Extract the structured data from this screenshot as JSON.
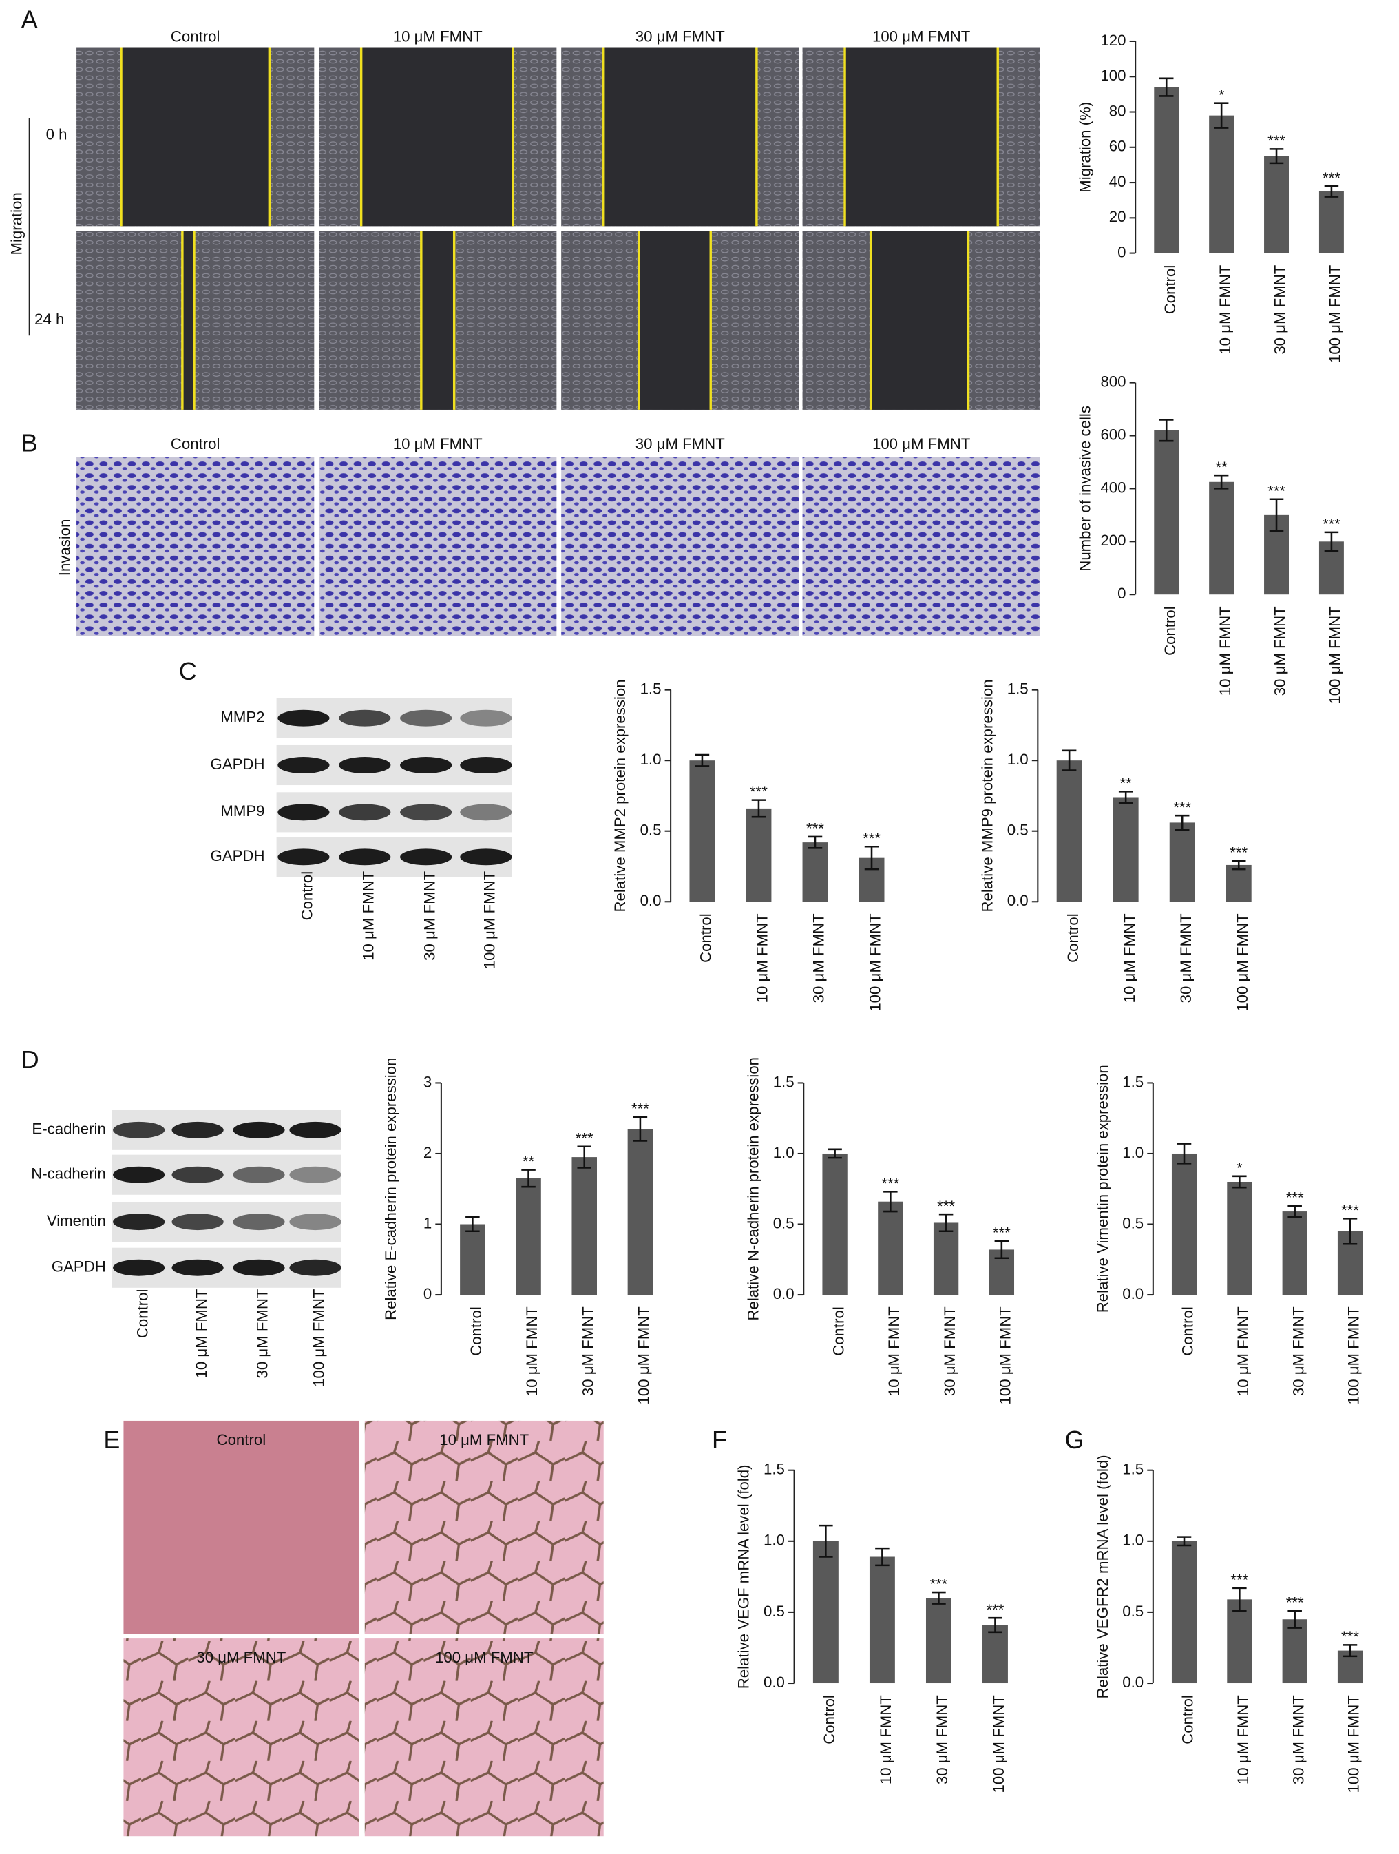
{
  "figure": {
    "panel_letters": [
      "A",
      "B",
      "C",
      "D",
      "E",
      "F",
      "G"
    ],
    "migration": {
      "label": "Migration",
      "rows": [
        "0 h",
        "24 h"
      ],
      "columns": [
        "Control",
        "10 μM FMNT",
        "30 μM FMNT",
        "100 μM FMNT"
      ]
    },
    "invasion": {
      "label": "Invasion",
      "columns": [
        "Control",
        "10 μM FMNT",
        "30 μM FMNT",
        "100 μM FMNT"
      ]
    },
    "blot_c": {
      "rows": [
        "MMP2",
        "GAPDH",
        "MMP9",
        "GAPDH"
      ],
      "lanes": [
        "Control",
        "10 μM FMNT",
        "30 μM FMNT",
        "100 μM FMNT"
      ]
    },
    "blot_d": {
      "rows": [
        "E-cadherin",
        "N-cadherin",
        "Vimentin",
        "GAPDH"
      ],
      "lanes": [
        "Control",
        "10 μM FMNT",
        "30 μM FMNT",
        "100 μM FMNT"
      ]
    },
    "tube": {
      "labels": [
        "Control",
        "10 μM FMNT",
        "30 μM FMNT",
        "100 μM FMNT"
      ]
    }
  },
  "chart_data": [
    {
      "type": "bar",
      "y_label": "Migration (%)",
      "categories": [
        "Control",
        "10 μM FMNT",
        "30 μM FMNT",
        "100 μM FMNT"
      ],
      "values": [
        94,
        78,
        55,
        35
      ],
      "errors": [
        5,
        7,
        4,
        3
      ],
      "annotations": [
        null,
        "*",
        "***",
        "***"
      ],
      "color": "#595959",
      "ylim": [
        0,
        120
      ],
      "yticks": [
        0,
        20,
        40,
        60,
        80,
        100,
        120
      ]
    },
    {
      "type": "bar",
      "y_label": "Number of invasive cells",
      "categories": [
        "Control",
        "10 μM FMNT",
        "30 μM FMNT",
        "100 μM FMNT"
      ],
      "values": [
        620,
        425,
        300,
        200
      ],
      "errors": [
        40,
        25,
        60,
        35
      ],
      "annotations": [
        null,
        "**",
        "***",
        "***"
      ],
      "color": "#595959",
      "ylim": [
        0,
        800
      ],
      "yticks": [
        0,
        200,
        400,
        600,
        800
      ]
    },
    {
      "type": "bar",
      "y_label": "Relative MMP2 protein expression",
      "categories": [
        "Control",
        "10 μM FMNT",
        "30 μM FMNT",
        "100 μM FMNT"
      ],
      "values": [
        1.0,
        0.66,
        0.42,
        0.31
      ],
      "errors": [
        0.04,
        0.06,
        0.04,
        0.08
      ],
      "annotations": [
        null,
        "***",
        "***",
        "***"
      ],
      "color": "#595959",
      "ylim": [
        0,
        1.5
      ],
      "yticks": [
        {
          "value": 0,
          "label": "0.0"
        },
        0.5,
        {
          "value": 1,
          "label": "1.0"
        },
        1.5
      ]
    },
    {
      "type": "bar",
      "y_label": "Relative MMP9 protein expression",
      "categories": [
        "Control",
        "10 μM FMNT",
        "30 μM FMNT",
        "100 μM FMNT"
      ],
      "values": [
        1.0,
        0.74,
        0.56,
        0.26
      ],
      "errors": [
        0.07,
        0.04,
        0.05,
        0.03
      ],
      "annotations": [
        null,
        "**",
        "***",
        "***"
      ],
      "color": "#595959",
      "ylim": [
        0,
        1.5
      ],
      "yticks": [
        {
          "value": 0,
          "label": "0.0"
        },
        0.5,
        {
          "value": 1,
          "label": "1.0"
        },
        1.5
      ]
    },
    {
      "type": "bar",
      "y_label": "Relative E-cadherin protein expression",
      "categories": [
        "Control",
        "10 μM FMNT",
        "30 μM FMNT",
        "100 μM FMNT"
      ],
      "values": [
        1.0,
        1.65,
        1.95,
        2.35
      ],
      "errors": [
        0.1,
        0.12,
        0.15,
        0.17
      ],
      "annotations": [
        null,
        "**",
        "***",
        "***"
      ],
      "color": "#595959",
      "ylim": [
        0,
        3
      ],
      "yticks": [
        0,
        1,
        2,
        3
      ]
    },
    {
      "type": "bar",
      "y_label": "Relative N-cadherin protein expression",
      "categories": [
        "Control",
        "10 μM FMNT",
        "30 μM FMNT",
        "100 μM FMNT"
      ],
      "values": [
        1.0,
        0.66,
        0.51,
        0.32
      ],
      "errors": [
        0.03,
        0.07,
        0.06,
        0.06
      ],
      "annotations": [
        null,
        "***",
        "***",
        "***"
      ],
      "color": "#595959",
      "ylim": [
        0,
        1.5
      ],
      "yticks": [
        {
          "value": 0,
          "label": "0.0"
        },
        0.5,
        {
          "value": 1,
          "label": "1.0"
        },
        1.5
      ]
    },
    {
      "type": "bar",
      "y_label": "Relative Vimentin protein expression",
      "categories": [
        "Control",
        "10 μM FMNT",
        "30 μM FMNT",
        "100 μM FMNT"
      ],
      "values": [
        1.0,
        0.8,
        0.59,
        0.45
      ],
      "errors": [
        0.07,
        0.04,
        0.04,
        0.09
      ],
      "annotations": [
        null,
        "*",
        "***",
        "***"
      ],
      "color": "#595959",
      "ylim": [
        0,
        1.5
      ],
      "yticks": [
        {
          "value": 0,
          "label": "0.0"
        },
        0.5,
        {
          "value": 1,
          "label": "1.0"
        },
        1.5
      ]
    },
    {
      "type": "bar",
      "y_label": "Relative VEGF mRNA level (fold)",
      "categories": [
        "Control",
        "10 μM FMNT",
        "30 μM FMNT",
        "100 μM FMNT"
      ],
      "values": [
        1.0,
        0.89,
        0.6,
        0.41
      ],
      "errors": [
        0.11,
        0.06,
        0.04,
        0.05
      ],
      "annotations": [
        null,
        null,
        "***",
        "***"
      ],
      "color": "#595959",
      "ylim": [
        0,
        1.5
      ],
      "yticks": [
        {
          "value": 0,
          "label": "0.0"
        },
        0.5,
        {
          "value": 1,
          "label": "1.0"
        },
        1.5
      ]
    },
    {
      "type": "bar",
      "y_label": "Relative VEGFR2 mRNA level (fold)",
      "categories": [
        "Control",
        "10 μM FMNT",
        "30 μM FMNT",
        "100 μM FMNT"
      ],
      "values": [
        1.0,
        0.59,
        0.45,
        0.23
      ],
      "errors": [
        0.03,
        0.08,
        0.06,
        0.04
      ],
      "annotations": [
        null,
        "***",
        "***",
        "***"
      ],
      "color": "#595959",
      "ylim": [
        0,
        1.5
      ],
      "yticks": [
        {
          "value": 0,
          "label": "0.0"
        },
        0.5,
        {
          "value": 1,
          "label": "1.0"
        },
        1.5
      ]
    }
  ]
}
